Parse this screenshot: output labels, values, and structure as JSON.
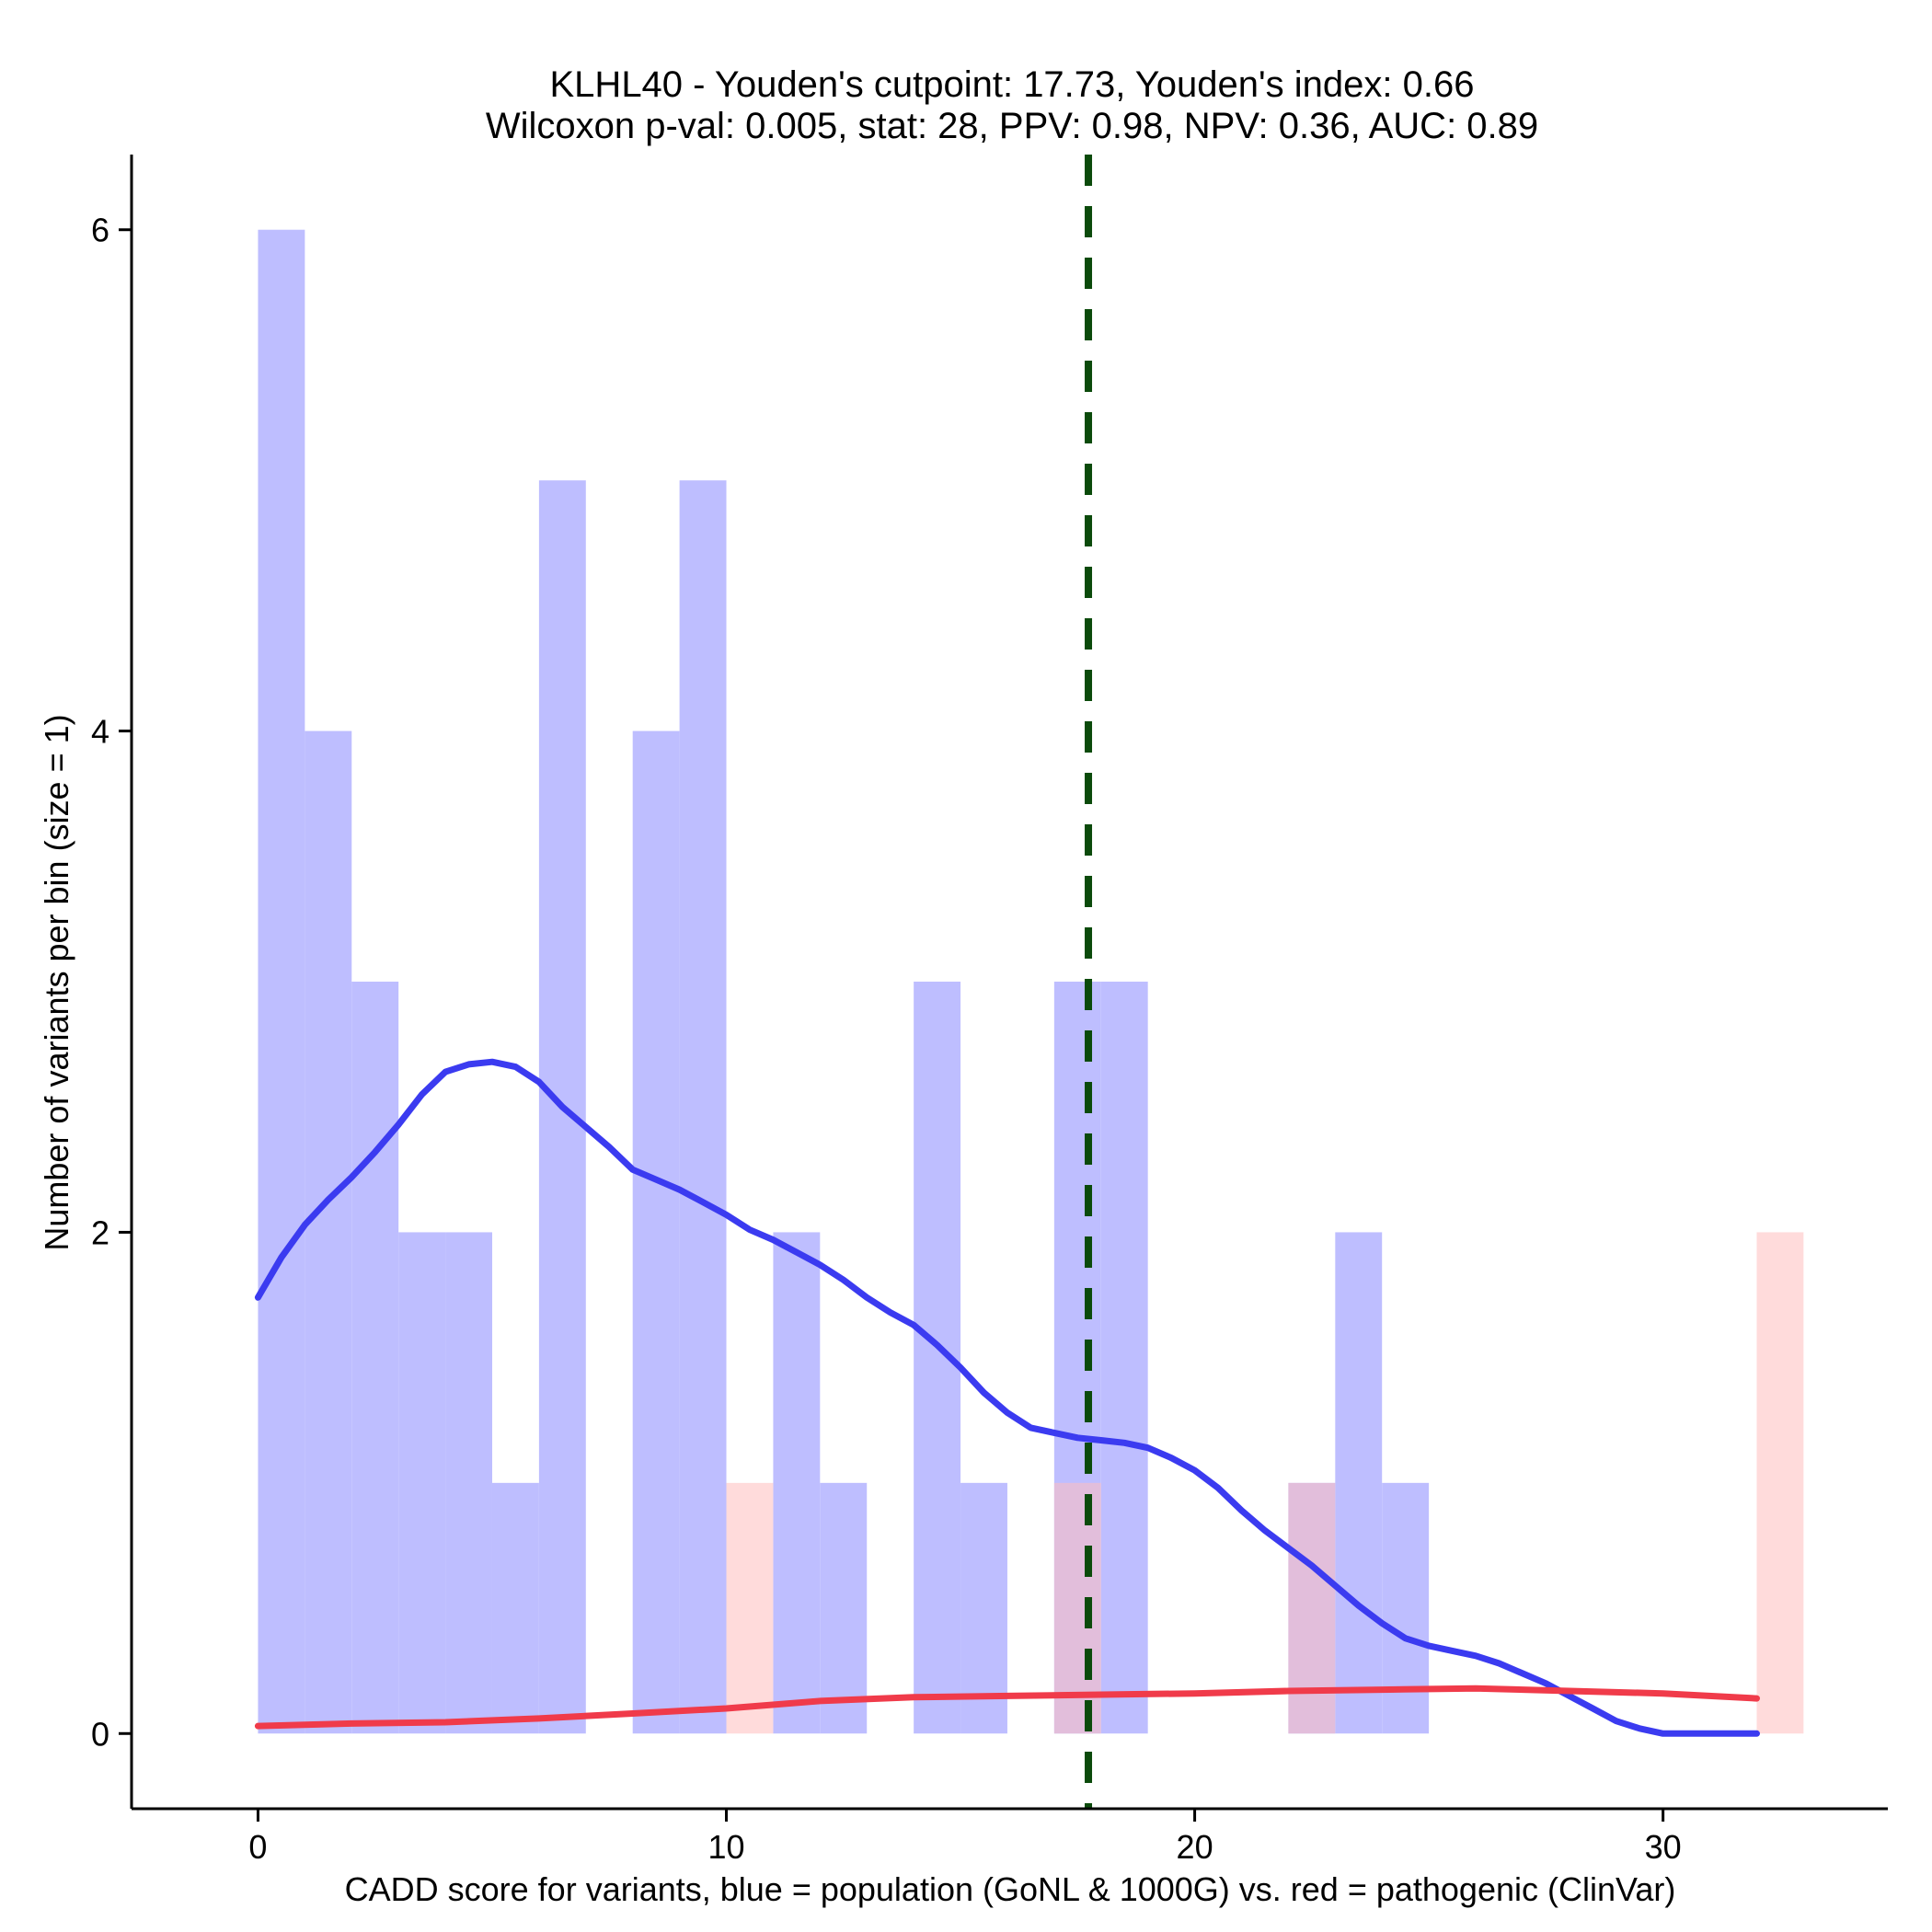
{
  "chart_data": {
    "type": "bar",
    "title_line1": "KLHL40 - Youden's cutpoint: 17.73, Youden's index: 0.66",
    "title_line2": "Wilcoxon p-val: 0.005, stat: 28, PPV: 0.98, NPV: 0.36, AUC: 0.89",
    "xlabel": "CADD score for variants, blue = population (GoNL & 1000G) vs. red = pathogenic (ClinVar)",
    "ylabel": "Number of variants per bin (size = 1)",
    "xlim": [
      -2.7,
      34.8
    ],
    "ylim": [
      -0.3,
      6.3
    ],
    "x_ticks": [
      0,
      10,
      20,
      30
    ],
    "x_tick_labels": [
      "0",
      "10",
      "20",
      "30"
    ],
    "y_ticks": [
      0,
      2,
      4,
      6
    ],
    "y_tick_labels": [
      "0",
      "2",
      "4",
      "6"
    ],
    "bin_width": 1,
    "cutpoint": 17.73,
    "colors": {
      "population_bar": "#bebeff",
      "pathogenic_bar": "#ffbebe",
      "population_line": "#3b3bf0",
      "pathogenic_line": "#f03b4a",
      "cutpoint_line": "#0b4a0b"
    },
    "series": [
      {
        "name": "population (GoNL & 1000G)",
        "bins": [
          {
            "start": 0,
            "count": 6
          },
          {
            "start": 1,
            "count": 4
          },
          {
            "start": 2,
            "count": 3
          },
          {
            "start": 3,
            "count": 2
          },
          {
            "start": 4,
            "count": 2
          },
          {
            "start": 5,
            "count": 1
          },
          {
            "start": 6,
            "count": 5
          },
          {
            "start": 8,
            "count": 4
          },
          {
            "start": 9,
            "count": 5
          },
          {
            "start": 11,
            "count": 2
          },
          {
            "start": 12,
            "count": 1
          },
          {
            "start": 14,
            "count": 3
          },
          {
            "start": 15,
            "count": 1
          },
          {
            "start": 17,
            "count": 3
          },
          {
            "start": 18,
            "count": 3
          },
          {
            "start": 22,
            "count": 1
          },
          {
            "start": 23,
            "count": 2
          },
          {
            "start": 24,
            "count": 1
          }
        ],
        "density_curve": [
          [
            0,
            1.74
          ],
          [
            0.5,
            1.9
          ],
          [
            1,
            2.03
          ],
          [
            1.5,
            2.13
          ],
          [
            2,
            2.22
          ],
          [
            2.5,
            2.32
          ],
          [
            3,
            2.43
          ],
          [
            3.5,
            2.55
          ],
          [
            4,
            2.64
          ],
          [
            4.5,
            2.67
          ],
          [
            5,
            2.68
          ],
          [
            5.5,
            2.66
          ],
          [
            6,
            2.6
          ],
          [
            6.5,
            2.5
          ],
          [
            7,
            2.42
          ],
          [
            7.5,
            2.34
          ],
          [
            8,
            2.25
          ],
          [
            8.5,
            2.21
          ],
          [
            9,
            2.17
          ],
          [
            9.5,
            2.12
          ],
          [
            10,
            2.07
          ],
          [
            10.5,
            2.01
          ],
          [
            11,
            1.97
          ],
          [
            11.5,
            1.92
          ],
          [
            12,
            1.87
          ],
          [
            12.5,
            1.81
          ],
          [
            13,
            1.74
          ],
          [
            13.5,
            1.68
          ],
          [
            14,
            1.63
          ],
          [
            14.5,
            1.55
          ],
          [
            15,
            1.46
          ],
          [
            15.5,
            1.36
          ],
          [
            16,
            1.28
          ],
          [
            16.5,
            1.22
          ],
          [
            17,
            1.2
          ],
          [
            17.5,
            1.18
          ],
          [
            18,
            1.17
          ],
          [
            18.5,
            1.16
          ],
          [
            19,
            1.14
          ],
          [
            19.5,
            1.1
          ],
          [
            20,
            1.05
          ],
          [
            20.5,
            0.98
          ],
          [
            21,
            0.89
          ],
          [
            21.5,
            0.81
          ],
          [
            22,
            0.74
          ],
          [
            22.5,
            0.67
          ],
          [
            23,
            0.59
          ],
          [
            23.5,
            0.51
          ],
          [
            24,
            0.44
          ],
          [
            24.5,
            0.38
          ],
          [
            25,
            0.35
          ],
          [
            25.5,
            0.33
          ],
          [
            26,
            0.31
          ],
          [
            26.5,
            0.28
          ],
          [
            27,
            0.24
          ],
          [
            27.5,
            0.2
          ],
          [
            28,
            0.15
          ],
          [
            28.5,
            0.1
          ],
          [
            29,
            0.05
          ],
          [
            29.5,
            0.02
          ],
          [
            30,
            0.0
          ],
          [
            31,
            0.0
          ],
          [
            32,
            0.0
          ]
        ]
      },
      {
        "name": "pathogenic (ClinVar)",
        "bins": [
          {
            "start": 10,
            "count": 1
          },
          {
            "start": 17,
            "count": 1
          },
          {
            "start": 22,
            "count": 1
          },
          {
            "start": 32,
            "count": 2
          }
        ],
        "density_curve": [
          [
            0,
            0.03
          ],
          [
            2,
            0.04
          ],
          [
            4,
            0.045
          ],
          [
            6,
            0.06
          ],
          [
            8,
            0.08
          ],
          [
            10,
            0.1
          ],
          [
            12,
            0.13
          ],
          [
            14,
            0.145
          ],
          [
            16,
            0.15
          ],
          [
            18,
            0.155
          ],
          [
            20,
            0.16
          ],
          [
            22,
            0.17
          ],
          [
            24,
            0.175
          ],
          [
            26,
            0.18
          ],
          [
            28,
            0.17
          ],
          [
            30,
            0.16
          ],
          [
            32,
            0.14
          ]
        ]
      }
    ]
  }
}
